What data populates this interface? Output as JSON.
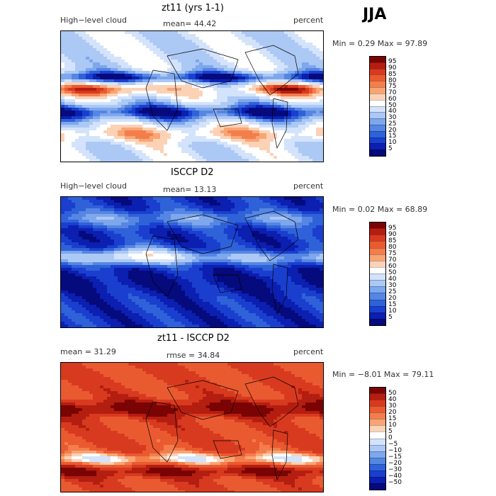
{
  "season": "JJA",
  "colors": {
    "abs": [
      "#7a0403",
      "#b41e10",
      "#d83a1f",
      "#ea5a31",
      "#f47d4c",
      "#f8a574",
      "#fcd2b7",
      "#ffffff",
      "#d3e3fb",
      "#acc8f5",
      "#7ea7ec",
      "#5686e3",
      "#2f62d8",
      "#1a3fcf",
      "#0b1fb0",
      "#050a7c"
    ],
    "diff": [
      "#7a0403",
      "#b41e10",
      "#d83a1f",
      "#ea5a31",
      "#f47d4c",
      "#f8a574",
      "#fcd2b7",
      "#ffffff",
      "#d3e3fb",
      "#acc8f5",
      "#7ea7ec",
      "#5686e3",
      "#2f62d8",
      "#1a3fcf",
      "#0b1fb0",
      "#050a7c"
    ]
  },
  "panels": [
    {
      "title": "zt11 (yrs 1-1)",
      "left_label": "High−level cloud",
      "center_label": "mean=  44.42",
      "right_label": "percent",
      "minmax": "Min =    0.29 Max =   97.89",
      "scale": "abs",
      "ticks": [
        "95",
        "90",
        "85",
        "80",
        "75",
        "70",
        "60",
        "50",
        "40",
        "30",
        "25",
        "20",
        "15",
        "10",
        "5"
      ],
      "field_type": "model"
    },
    {
      "title": "ISCCP D2",
      "left_label": "High−level cloud",
      "center_label": "mean=  13.13",
      "right_label": "percent",
      "minmax": "Min =    0.02 Max =   68.89",
      "scale": "abs",
      "ticks": [
        "95",
        "90",
        "85",
        "80",
        "75",
        "70",
        "60",
        "50",
        "40",
        "30",
        "25",
        "20",
        "15",
        "10",
        "5"
      ],
      "field_type": "obs"
    },
    {
      "title": "zt11 - ISCCP D2",
      "left_label": "mean =   31.29",
      "center_label": "rmse =   34.84",
      "right_label": "percent",
      "minmax": "Min =  −8.01 Max =   79.11",
      "scale": "diff",
      "ticks": [
        "50",
        "40",
        "30",
        "20",
        "15",
        "10",
        "5",
        "0",
        "−5",
        "−10",
        "−15",
        "−20",
        "−30",
        "−40",
        "−50"
      ],
      "field_type": "diff"
    }
  ]
}
